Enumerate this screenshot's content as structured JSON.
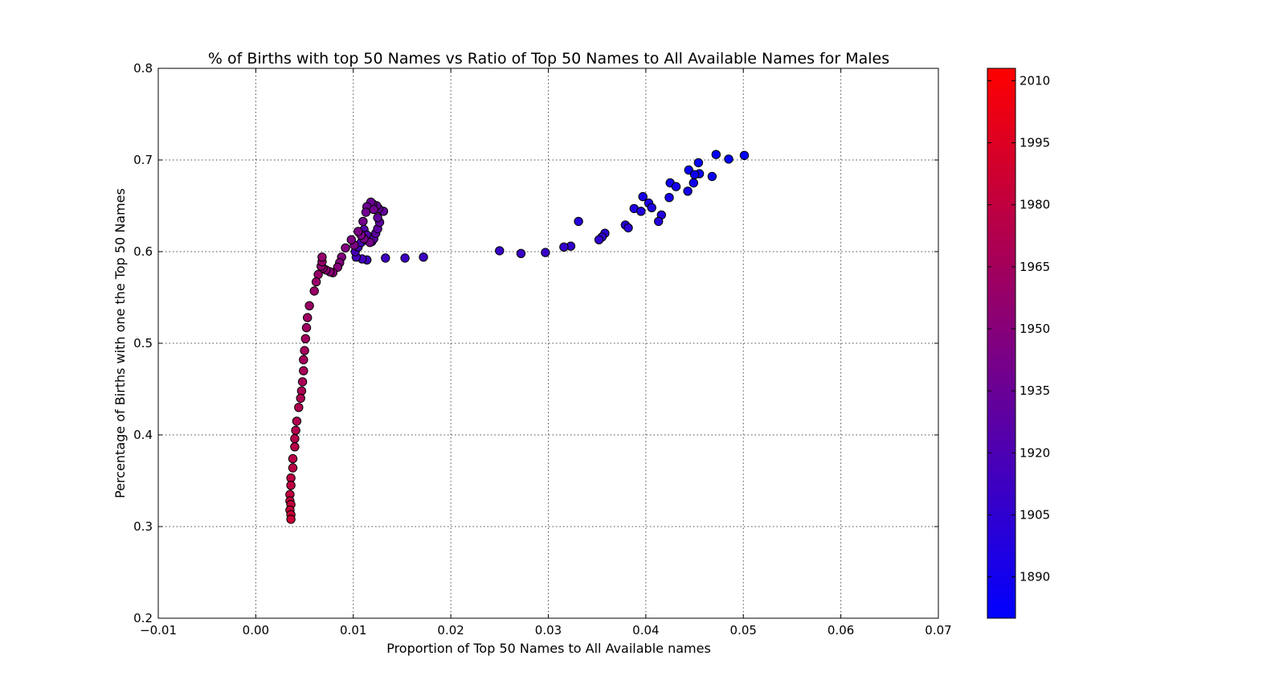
{
  "chart_data": {
    "type": "scatter",
    "title": "% of Births with top 50 Names vs Ratio of Top 50 Names to All Available Names for Males",
    "xlabel": "Proportion of Top 50 Names to All Available names",
    "ylabel": "Percentage of Births with one the Top 50 Names",
    "xlim": [
      -0.01,
      0.07
    ],
    "ylim": [
      0.2,
      0.8
    ],
    "xticks": [
      "−0.01",
      "0.00",
      "0.01",
      "0.02",
      "0.03",
      "0.04",
      "0.05",
      "0.06",
      "0.07"
    ],
    "yticks": [
      "0.2",
      "0.3",
      "0.4",
      "0.5",
      "0.6",
      "0.7",
      "0.8"
    ],
    "grid": true,
    "colorbar": {
      "min_year": 1880,
      "max_year": 2013,
      "low_color": "#0000ff",
      "high_color": "#ff0000",
      "tick_years": [
        1890,
        1905,
        1920,
        1935,
        1950,
        1965,
        1980,
        1995,
        2010
      ],
      "tick_labels": [
        "1890",
        "1905",
        "1920",
        "1935",
        "1950",
        "1965",
        "1980",
        "1995",
        "2010"
      ]
    },
    "points": [
      {
        "year": 1880,
        "x": 0.0501,
        "y": 0.705
      },
      {
        "year": 1881,
        "x": 0.0472,
        "y": 0.706
      },
      {
        "year": 1882,
        "x": 0.0485,
        "y": 0.701
      },
      {
        "year": 1883,
        "x": 0.0454,
        "y": 0.697
      },
      {
        "year": 1884,
        "x": 0.0444,
        "y": 0.689
      },
      {
        "year": 1885,
        "x": 0.0455,
        "y": 0.685
      },
      {
        "year": 1886,
        "x": 0.0468,
        "y": 0.682
      },
      {
        "year": 1887,
        "x": 0.045,
        "y": 0.684
      },
      {
        "year": 1888,
        "x": 0.0449,
        "y": 0.675
      },
      {
        "year": 1889,
        "x": 0.0425,
        "y": 0.675
      },
      {
        "year": 1890,
        "x": 0.0431,
        "y": 0.671
      },
      {
        "year": 1891,
        "x": 0.0443,
        "y": 0.666
      },
      {
        "year": 1892,
        "x": 0.0424,
        "y": 0.659
      },
      {
        "year": 1893,
        "x": 0.0397,
        "y": 0.66
      },
      {
        "year": 1894,
        "x": 0.0403,
        "y": 0.653
      },
      {
        "year": 1895,
        "x": 0.0406,
        "y": 0.648
      },
      {
        "year": 1896,
        "x": 0.0388,
        "y": 0.647
      },
      {
        "year": 1897,
        "x": 0.0395,
        "y": 0.644
      },
      {
        "year": 1898,
        "x": 0.0416,
        "y": 0.64
      },
      {
        "year": 1899,
        "x": 0.0413,
        "y": 0.633
      },
      {
        "year": 1900,
        "x": 0.0331,
        "y": 0.633
      },
      {
        "year": 1901,
        "x": 0.0379,
        "y": 0.629
      },
      {
        "year": 1902,
        "x": 0.0382,
        "y": 0.626
      },
      {
        "year": 1903,
        "x": 0.0358,
        "y": 0.62
      },
      {
        "year": 1904,
        "x": 0.0355,
        "y": 0.616
      },
      {
        "year": 1905,
        "x": 0.0352,
        "y": 0.613
      },
      {
        "year": 1906,
        "x": 0.0323,
        "y": 0.606
      },
      {
        "year": 1907,
        "x": 0.0316,
        "y": 0.605
      },
      {
        "year": 1908,
        "x": 0.025,
        "y": 0.601
      },
      {
        "year": 1909,
        "x": 0.0297,
        "y": 0.599
      },
      {
        "year": 1910,
        "x": 0.0272,
        "y": 0.598
      },
      {
        "year": 1911,
        "x": 0.0172,
        "y": 0.594
      },
      {
        "year": 1912,
        "x": 0.0153,
        "y": 0.593
      },
      {
        "year": 1913,
        "x": 0.0133,
        "y": 0.593
      },
      {
        "year": 1914,
        "x": 0.0114,
        "y": 0.591
      },
      {
        "year": 1915,
        "x": 0.0109,
        "y": 0.592
      },
      {
        "year": 1916,
        "x": 0.0103,
        "y": 0.594
      },
      {
        "year": 1917,
        "x": 0.0102,
        "y": 0.6
      },
      {
        "year": 1918,
        "x": 0.0105,
        "y": 0.605
      },
      {
        "year": 1919,
        "x": 0.0108,
        "y": 0.61
      },
      {
        "year": 1920,
        "x": 0.0113,
        "y": 0.613
      },
      {
        "year": 1921,
        "x": 0.0117,
        "y": 0.616
      },
      {
        "year": 1922,
        "x": 0.0112,
        "y": 0.619
      },
      {
        "year": 1923,
        "x": 0.0106,
        "y": 0.621
      },
      {
        "year": 1924,
        "x": 0.0111,
        "y": 0.624
      },
      {
        "year": 1925,
        "x": 0.0114,
        "y": 0.618
      },
      {
        "year": 1926,
        "x": 0.0119,
        "y": 0.611
      },
      {
        "year": 1927,
        "x": 0.0121,
        "y": 0.614
      },
      {
        "year": 1928,
        "x": 0.0123,
        "y": 0.62
      },
      {
        "year": 1929,
        "x": 0.0125,
        "y": 0.625
      },
      {
        "year": 1930,
        "x": 0.0127,
        "y": 0.632
      },
      {
        "year": 1931,
        "x": 0.0125,
        "y": 0.637
      },
      {
        "year": 1932,
        "x": 0.0131,
        "y": 0.644
      },
      {
        "year": 1933,
        "x": 0.0126,
        "y": 0.647
      },
      {
        "year": 1934,
        "x": 0.0124,
        "y": 0.65
      },
      {
        "year": 1935,
        "x": 0.012,
        "y": 0.652
      },
      {
        "year": 1936,
        "x": 0.0118,
        "y": 0.654
      },
      {
        "year": 1937,
        "x": 0.0114,
        "y": 0.649
      },
      {
        "year": 1938,
        "x": 0.0113,
        "y": 0.643
      },
      {
        "year": 1939,
        "x": 0.0121,
        "y": 0.646
      },
      {
        "year": 1940,
        "x": 0.011,
        "y": 0.633
      },
      {
        "year": 1941,
        "x": 0.0117,
        "y": 0.61
      },
      {
        "year": 1942,
        "x": 0.0111,
        "y": 0.614
      },
      {
        "year": 1943,
        "x": 0.0108,
        "y": 0.618
      },
      {
        "year": 1944,
        "x": 0.0105,
        "y": 0.622
      },
      {
        "year": 1945,
        "x": 0.0101,
        "y": 0.607
      },
      {
        "year": 1946,
        "x": 0.0098,
        "y": 0.613
      },
      {
        "year": 1947,
        "x": 0.0092,
        "y": 0.604
      },
      {
        "year": 1948,
        "x": 0.0088,
        "y": 0.594
      },
      {
        "year": 1949,
        "x": 0.0086,
        "y": 0.588
      },
      {
        "year": 1950,
        "x": 0.0084,
        "y": 0.583
      },
      {
        "year": 1951,
        "x": 0.0079,
        "y": 0.577
      },
      {
        "year": 1952,
        "x": 0.0076,
        "y": 0.578
      },
      {
        "year": 1953,
        "x": 0.0072,
        "y": 0.58
      },
      {
        "year": 1954,
        "x": 0.0069,
        "y": 0.582
      },
      {
        "year": 1955,
        "x": 0.0067,
        "y": 0.584
      },
      {
        "year": 1956,
        "x": 0.0068,
        "y": 0.589
      },
      {
        "year": 1957,
        "x": 0.0068,
        "y": 0.594
      },
      {
        "year": 1958,
        "x": 0.0064,
        "y": 0.575
      },
      {
        "year": 1959,
        "x": 0.0062,
        "y": 0.567
      },
      {
        "year": 1960,
        "x": 0.006,
        "y": 0.557
      },
      {
        "year": 1961,
        "x": 0.0055,
        "y": 0.541
      },
      {
        "year": 1962,
        "x": 0.0053,
        "y": 0.528
      },
      {
        "year": 1963,
        "x": 0.0052,
        "y": 0.517
      },
      {
        "year": 1964,
        "x": 0.0051,
        "y": 0.505
      },
      {
        "year": 1965,
        "x": 0.005,
        "y": 0.492
      },
      {
        "year": 1966,
        "x": 0.0049,
        "y": 0.482
      },
      {
        "year": 1967,
        "x": 0.0049,
        "y": 0.47
      },
      {
        "year": 1968,
        "x": 0.0048,
        "y": 0.458
      },
      {
        "year": 1969,
        "x": 0.0047,
        "y": 0.448
      },
      {
        "year": 1970,
        "x": 0.0046,
        "y": 0.44
      },
      {
        "year": 1971,
        "x": 0.0044,
        "y": 0.43
      },
      {
        "year": 1972,
        "x": 0.0042,
        "y": 0.415
      },
      {
        "year": 1973,
        "x": 0.0041,
        "y": 0.405
      },
      {
        "year": 1974,
        "x": 0.004,
        "y": 0.396
      },
      {
        "year": 1975,
        "x": 0.004,
        "y": 0.387
      },
      {
        "year": 1976,
        "x": 0.0038,
        "y": 0.374
      },
      {
        "year": 1977,
        "x": 0.0038,
        "y": 0.364
      },
      {
        "year": 1978,
        "x": 0.0036,
        "y": 0.353
      },
      {
        "year": 1979,
        "x": 0.0036,
        "y": 0.345
      },
      {
        "year": 1980,
        "x": 0.0035,
        "y": 0.335
      },
      {
        "year": 1981,
        "x": 0.0035,
        "y": 0.328
      },
      {
        "year": 1982,
        "x": 0.0036,
        "y": 0.324
      },
      {
        "year": 1983,
        "x": 0.0035,
        "y": 0.318
      },
      {
        "year": 1984,
        "x": 0.0036,
        "y": 0.313
      },
      {
        "year": 1985,
        "x": 0.0036,
        "y": 0.308
      }
    ]
  }
}
